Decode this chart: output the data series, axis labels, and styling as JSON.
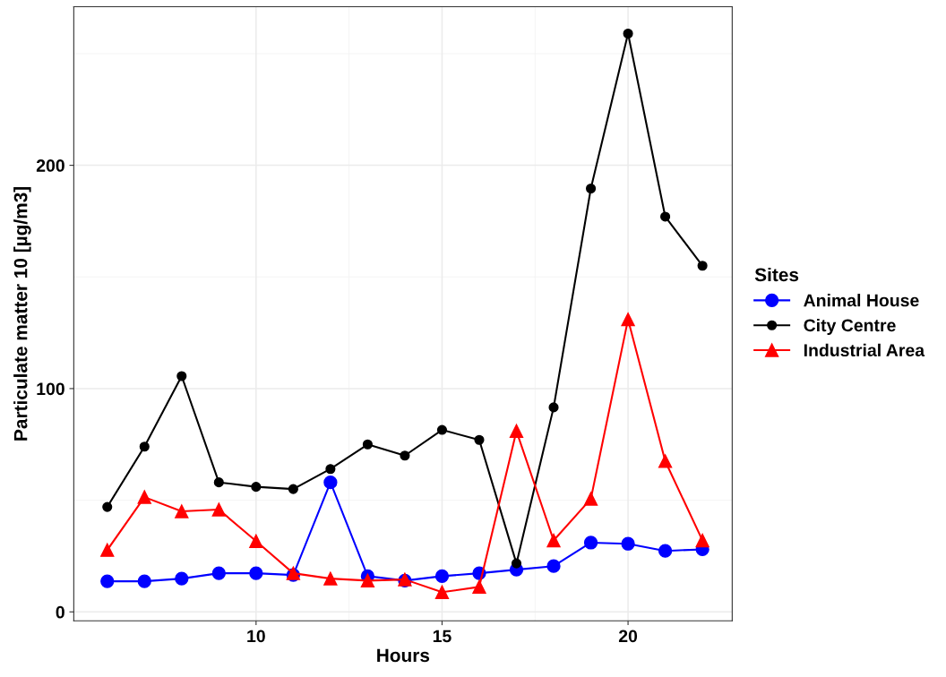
{
  "chart_data": {
    "type": "line",
    "xlabel": "Hours",
    "ylabel": "Particulate matter 10 [µg/m3]",
    "legend_title": "Sites",
    "legend": "right",
    "grid": true,
    "x": [
      6,
      7,
      8,
      9,
      10,
      11,
      12,
      13,
      14,
      15,
      16,
      17,
      18,
      19,
      20,
      21,
      22
    ],
    "xlim": [
      5.1,
      22.8
    ],
    "xticks": [
      10,
      15,
      20
    ],
    "ylim": [
      -4,
      271
    ],
    "yticks": [
      0,
      100,
      200
    ],
    "series": [
      {
        "name": "Animal House",
        "color": "#0000ff",
        "marker": "circle",
        "values": [
          13.7,
          13.7,
          14.9,
          17.3,
          17.3,
          16.5,
          58,
          16,
          14,
          16,
          17.3,
          18.9,
          20.5,
          31,
          30.5,
          27.3,
          28
        ]
      },
      {
        "name": "City Centre",
        "color": "#000000",
        "marker": "circle",
        "values": [
          47,
          74,
          105.6,
          58,
          56,
          55,
          64,
          75,
          70,
          81.5,
          77,
          21.7,
          91.6,
          189.6,
          259,
          177,
          155
        ]
      },
      {
        "name": "Industrial Area",
        "color": "#ff0000",
        "marker": "triangle",
        "values": [
          27.7,
          51.4,
          45,
          45.8,
          31.7,
          17.3,
          14.9,
          14,
          14.5,
          8.8,
          11.2,
          81,
          32,
          50.6,
          131,
          67.5,
          32
        ]
      }
    ]
  }
}
